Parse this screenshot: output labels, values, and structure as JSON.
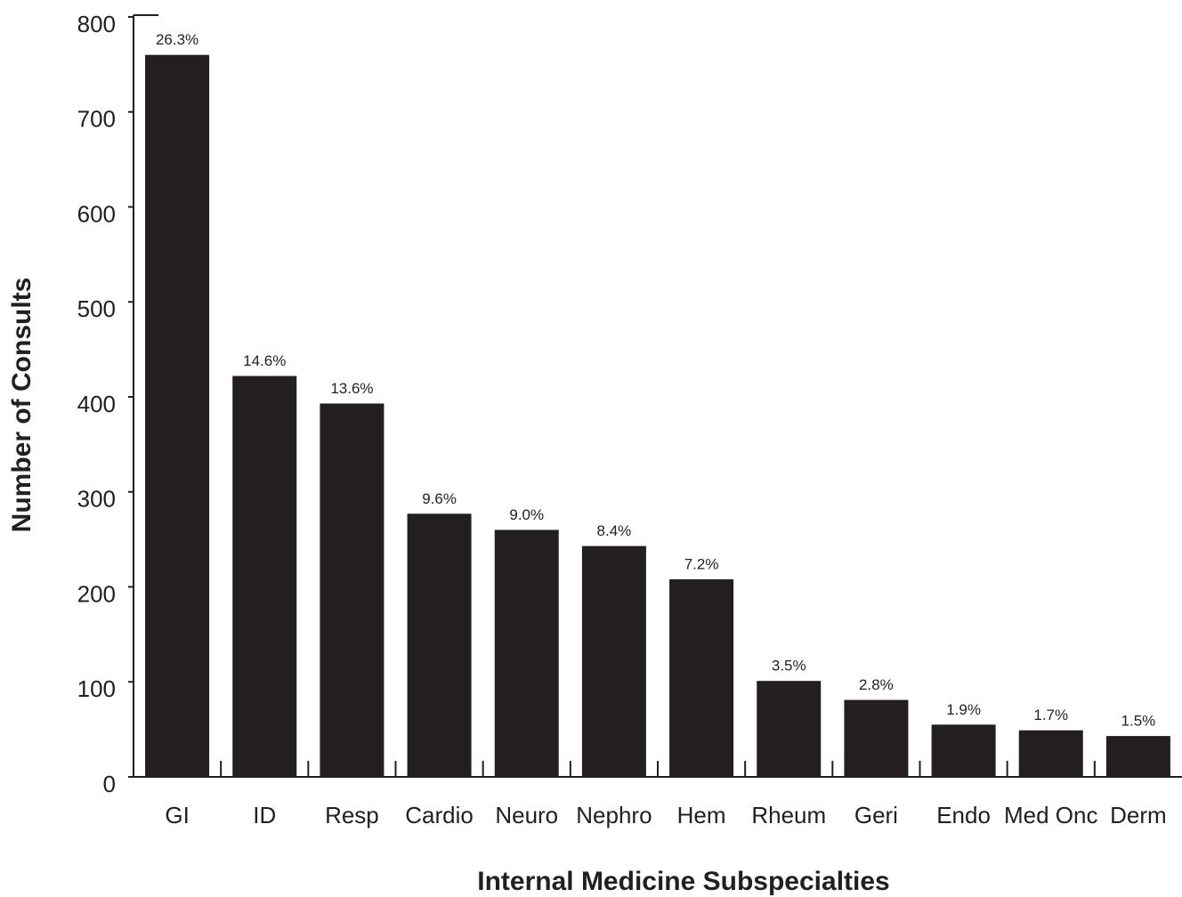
{
  "chart_data": {
    "type": "bar",
    "x_label": "Internal Medicine Subspecialties",
    "y_label": "Number of Consults",
    "categories": [
      "GI",
      "ID",
      "Resp",
      "Cardio",
      "Neuro",
      "Nephro",
      "Hem",
      "Rheum",
      "Geri",
      "Endo",
      "Med Onc",
      "Derm"
    ],
    "values": [
      760,
      422,
      393,
      277,
      260,
      243,
      208,
      101,
      81,
      55,
      49,
      43
    ],
    "bar_labels": [
      "26.3%",
      "14.6%",
      "13.6%",
      "9.6%",
      "9.0%",
      "8.4%",
      "7.2%",
      "3.5%",
      "2.8%",
      "1.9%",
      "1.7%",
      "1.5%"
    ],
    "color": "#231f20",
    "ylim": [
      0,
      800
    ],
    "yticks": [
      0,
      100,
      200,
      300,
      400,
      500,
      600,
      700,
      800
    ],
    "grid": false
  }
}
